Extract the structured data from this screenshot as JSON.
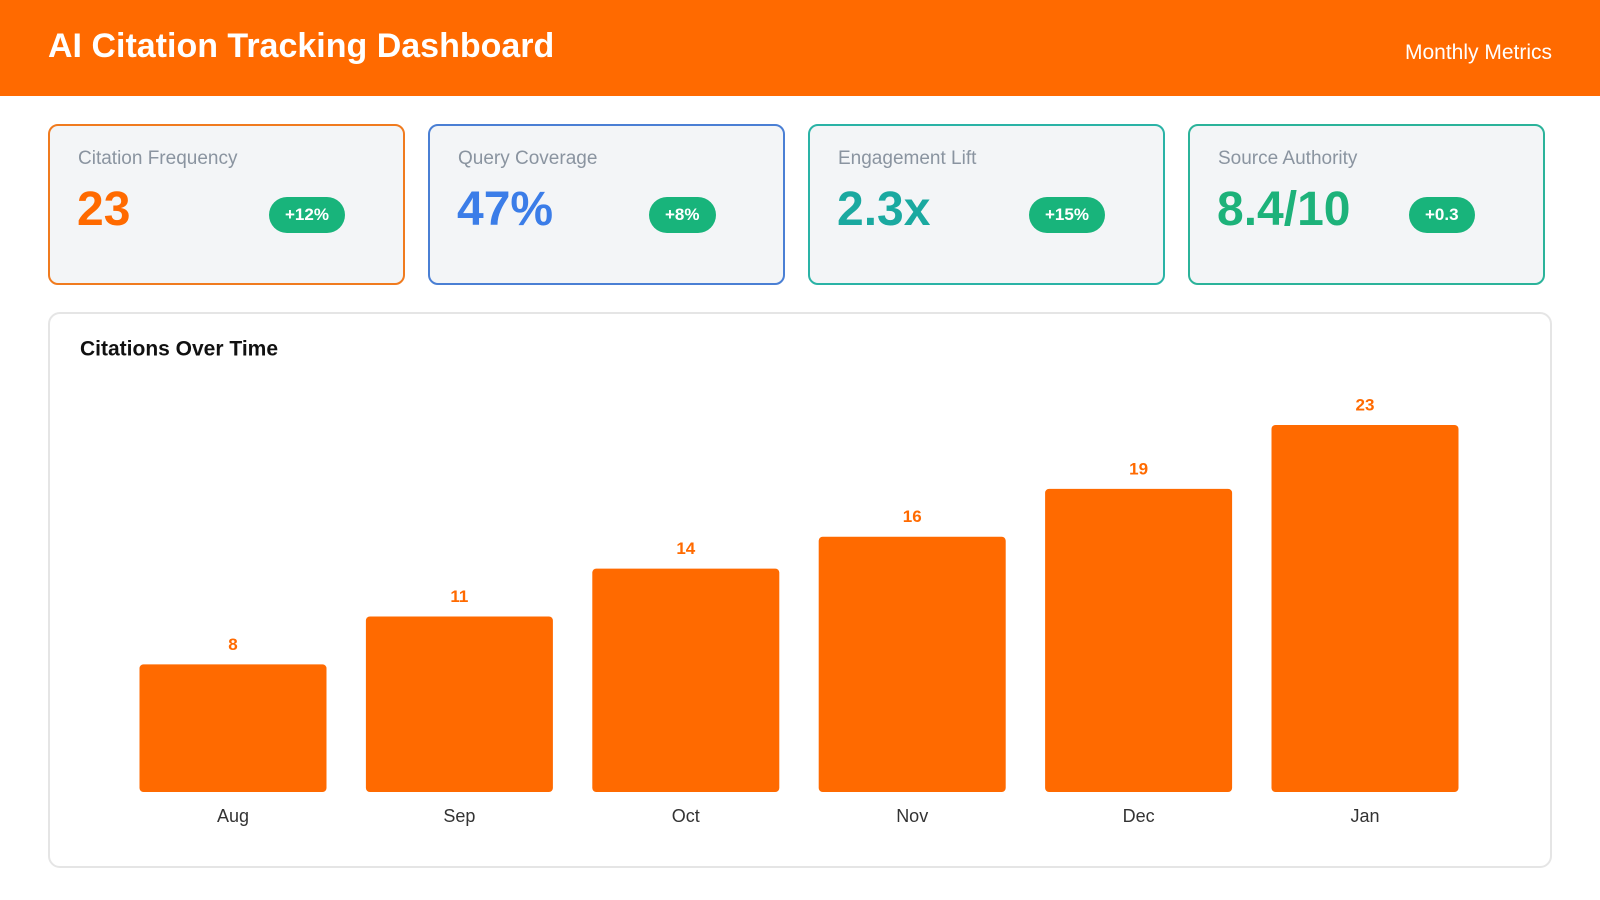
{
  "header": {
    "title": "AI Citation Tracking Dashboard",
    "subtitle": "Monthly Metrics"
  },
  "cards": [
    {
      "label": "Citation Frequency",
      "value": "23",
      "badge": "+12%",
      "color": "#ff6a00",
      "border": "#f07b1f"
    },
    {
      "label": "Query Coverage",
      "value": "47%",
      "badge": "+8%",
      "color": "#3b7de8",
      "border": "#4a7fd4"
    },
    {
      "label": "Engagement Lift",
      "value": "2.3x",
      "badge": "+15%",
      "color": "#1aa9a0",
      "border": "#2ab3a6"
    },
    {
      "label": "Source Authority",
      "value": "8.4/10",
      "badge": "+0.3",
      "color": "#1db27a",
      "border": "#2bb39a"
    }
  ],
  "chart_data": {
    "type": "bar",
    "title": "Citations Over Time",
    "categories": [
      "Aug",
      "Sep",
      "Oct",
      "Nov",
      "Dec",
      "Jan"
    ],
    "values": [
      8,
      11,
      14,
      16,
      19,
      23
    ],
    "color": "#ff6a00"
  }
}
